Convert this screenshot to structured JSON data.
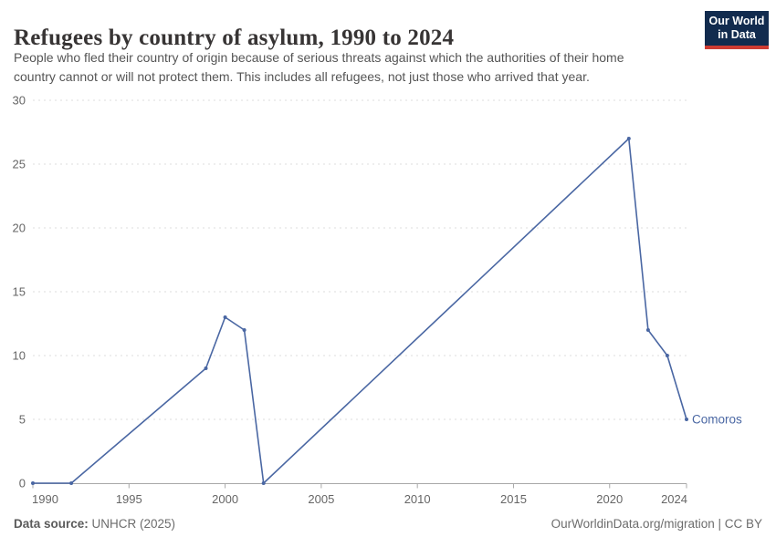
{
  "header": {
    "title": "Refugees by country of asylum, 1990 to 2024",
    "subtitle_lines": [
      "People who fled their country of origin because of serious threats against which the authorities of their home",
      "country cannot or will not protect them. This includes all refugees, not just those who arrived that year."
    ],
    "logo": {
      "line1": "Our World",
      "line2": "in Data",
      "bg_color": "#122B4E",
      "accent_color": "#CE3B32"
    }
  },
  "chart_data": {
    "type": "line",
    "title": "Refugees by country of asylum, 1990 to 2024",
    "entity": "Comoros",
    "xlabel": "",
    "ylabel": "",
    "xlim": [
      1990,
      2024
    ],
    "ylim": [
      0,
      30
    ],
    "x_ticks": [
      1990,
      1995,
      2000,
      2005,
      2010,
      2015,
      2020,
      2024
    ],
    "y_ticks": [
      0,
      5,
      10,
      15,
      20,
      25,
      30
    ],
    "grid": "horizontal-dashed",
    "legend_position": "end-of-line-label",
    "colors": {
      "line": "#4A67A3",
      "gridline": "#dcdcdc",
      "axis": "#a8a8a8",
      "tick_label": "#666666"
    },
    "series": [
      {
        "name": "Comoros",
        "color": "#4A67A3",
        "points": [
          [
            1990,
            0
          ],
          [
            1992,
            0
          ],
          [
            1999,
            9
          ],
          [
            2000,
            13
          ],
          [
            2001,
            12
          ],
          [
            2002,
            0
          ],
          [
            2021,
            27
          ],
          [
            2022,
            12
          ],
          [
            2023,
            10
          ],
          [
            2024,
            5
          ]
        ]
      }
    ]
  },
  "footer": {
    "source_label": "Data source:",
    "source_value": " UNHCR (2025)",
    "credit": "OurWorldinData.org/migration | CC BY"
  }
}
